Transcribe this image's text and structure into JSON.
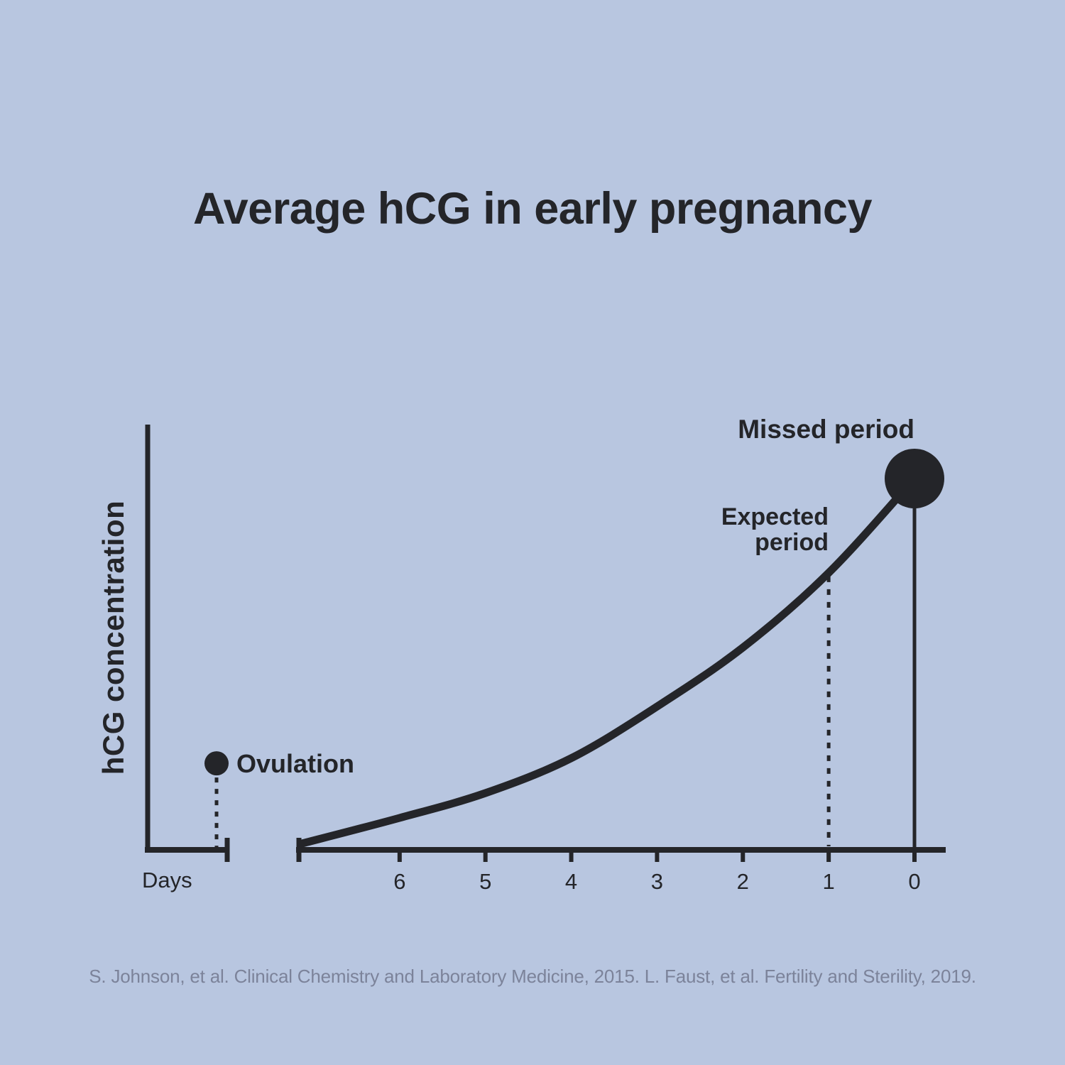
{
  "page": {
    "background_color": "#b8c6e0",
    "ink_color": "#242529",
    "muted_text_color": "#7c839a"
  },
  "title": {
    "text": "Average hCG in early pregnancy"
  },
  "chart_data": {
    "type": "line",
    "title": "Average hCG in early pregnancy",
    "xlabel": "Days",
    "ylabel": "hCG concentration",
    "grid": false,
    "legend": "none",
    "x_axis": {
      "label": "Days",
      "tick_labels": [
        "6",
        "5",
        "4",
        "3",
        "2",
        "1",
        "0"
      ],
      "tick_values": [
        6,
        5,
        4,
        3,
        2,
        1,
        0
      ],
      "direction": "days counting down, 0 at right",
      "axis_break": true,
      "break_note": "short left axis segment holds the Ovulation marker, then a gap, then the main day axis"
    },
    "y_axis": {
      "label": "hCG concentration",
      "scale": "relative, unlabeled",
      "range": [
        0,
        1.15
      ]
    },
    "series": [
      {
        "name": "Average hCG concentration",
        "x_days": [
          7.14,
          6,
          5,
          4,
          3,
          2,
          1,
          0
        ],
        "y_relative": [
          0.017,
          0.086,
          0.153,
          0.247,
          0.386,
          0.545,
          0.746,
          1.0
        ]
      }
    ],
    "annotations": [
      {
        "label": "Ovulation",
        "segment": "pre-break left axis",
        "y_relative": 0.233,
        "marker": "small-dot",
        "guide_line": "dotted"
      },
      {
        "label": "Expected period",
        "label_lines": [
          "Expected",
          "period"
        ],
        "x_days": 1,
        "y_relative": 0.746,
        "marker": "none",
        "guide_line": "dotted"
      },
      {
        "label": "Missed period",
        "x_days": 0,
        "y_relative": 1.0,
        "marker": "large-dot",
        "guide_line": "solid"
      }
    ]
  },
  "citation": {
    "text": "S. Johnson, et al. Clinical Chemistry and Laboratory Medicine, 2015. L. Faust, et al. Fertility and Sterility, 2019."
  }
}
